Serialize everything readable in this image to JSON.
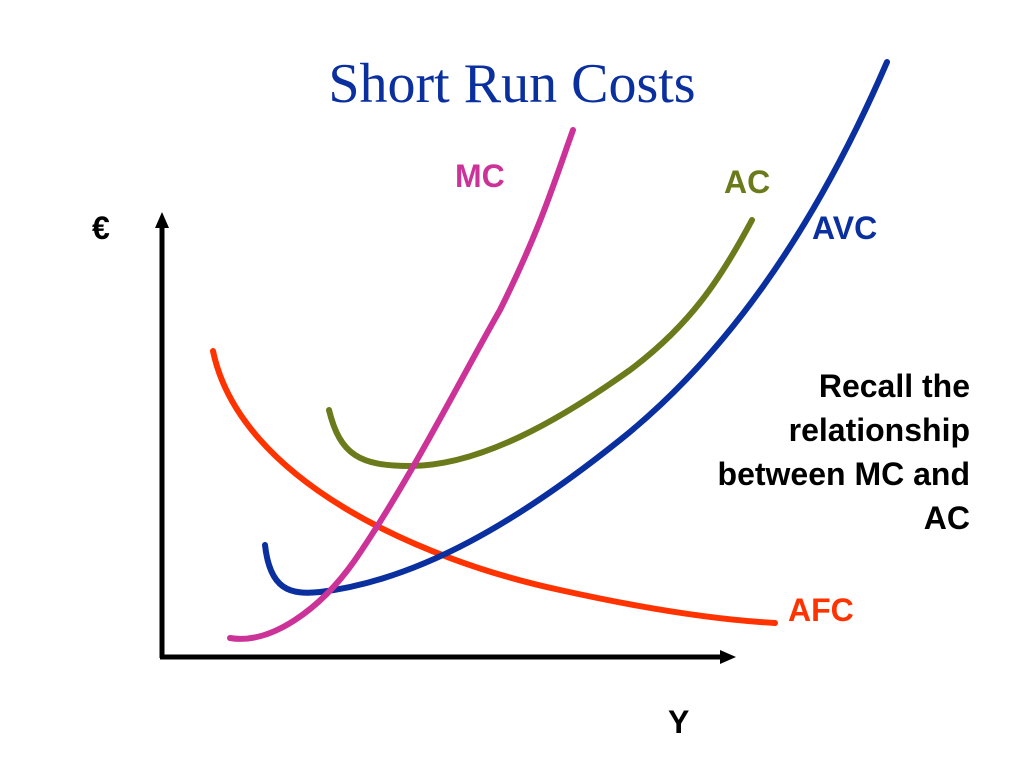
{
  "slide": {
    "title": "Short Run Costs",
    "note": "Recall the relationship between MC and AC"
  },
  "axes": {
    "y_label": "€",
    "x_label": "Y"
  },
  "curves": [
    {
      "id": "mc",
      "name": "MC",
      "color": "#cc3399"
    },
    {
      "id": "ac",
      "name": "AC",
      "color": "#6b7a1a"
    },
    {
      "id": "avc",
      "name": "AVC",
      "color": "#0a2f9e"
    },
    {
      "id": "afc",
      "name": "AFC",
      "color": "#ff3300"
    }
  ],
  "colors": {
    "title": "#0a2f9e",
    "axis": "#000000",
    "text": "#000000"
  }
}
